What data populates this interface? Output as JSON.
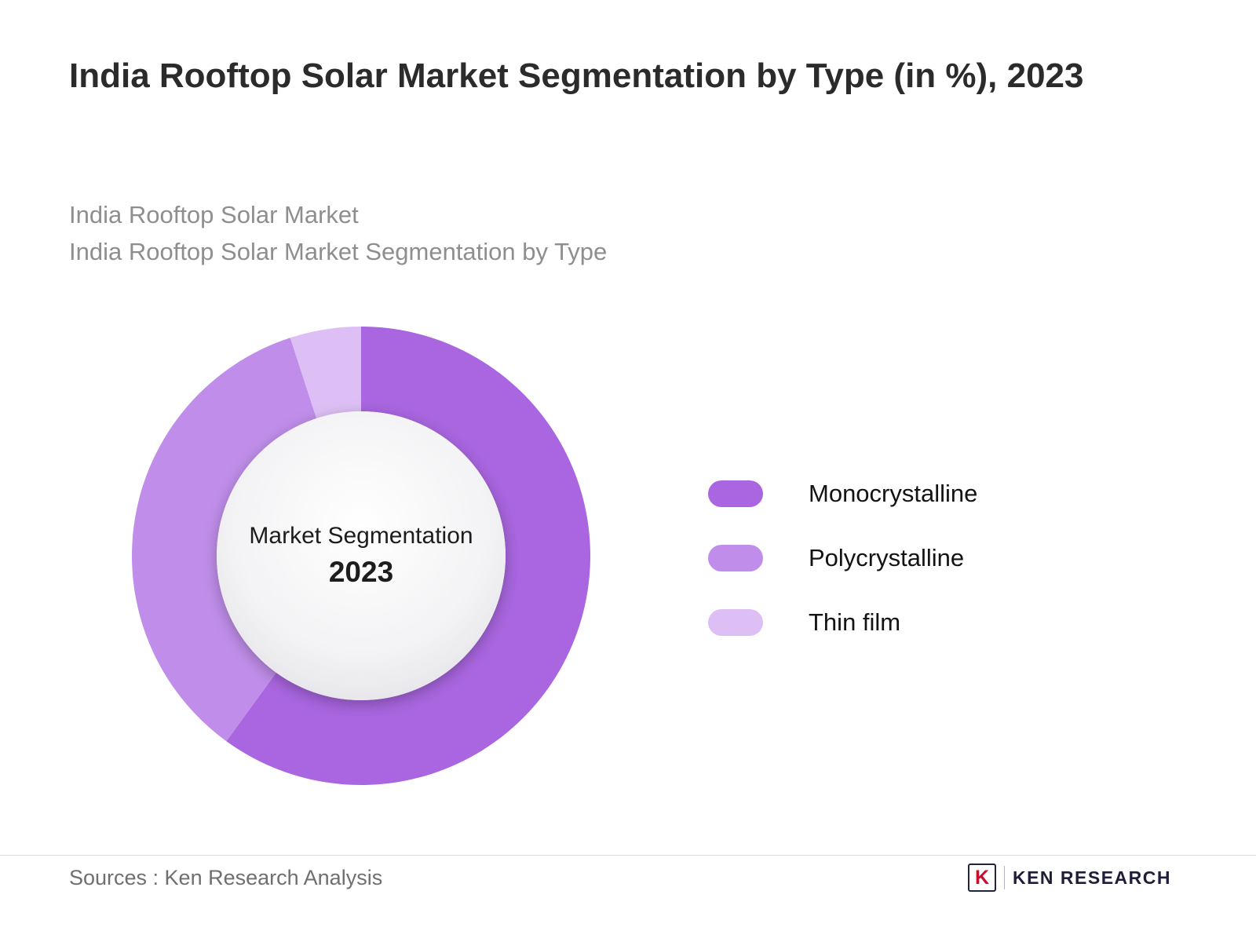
{
  "title": "India Rooftop Solar Market Segmentation by Type (in %), 2023",
  "subtitle_lines": [
    "India Rooftop Solar Market",
    "India Rooftop Solar Market Segmentation by Type"
  ],
  "chart_data": {
    "type": "pie",
    "subtype": "donut",
    "title": "India Rooftop Solar Market Segmentation by Type (in %), 2023",
    "categories": [
      "Monocrystalline",
      "Polycrystalline",
      "Thin film"
    ],
    "values": [
      60,
      35,
      5
    ],
    "colors": [
      "#a966e0",
      "#c08eea",
      "#debff5"
    ],
    "center_label": "Market Segmentation",
    "center_sublabel": "2023",
    "start_angle_deg": -90,
    "direction": "clockwise",
    "legend_position": "right",
    "inner_radius_ratio": 0.63,
    "inner_circle_colors": [
      "#ffffff",
      "#e2e2e7"
    ]
  },
  "footer": {
    "sources": "Sources : Ken Research Analysis",
    "logo_letter": "K",
    "logo_text": "KEN RESEARCH"
  }
}
